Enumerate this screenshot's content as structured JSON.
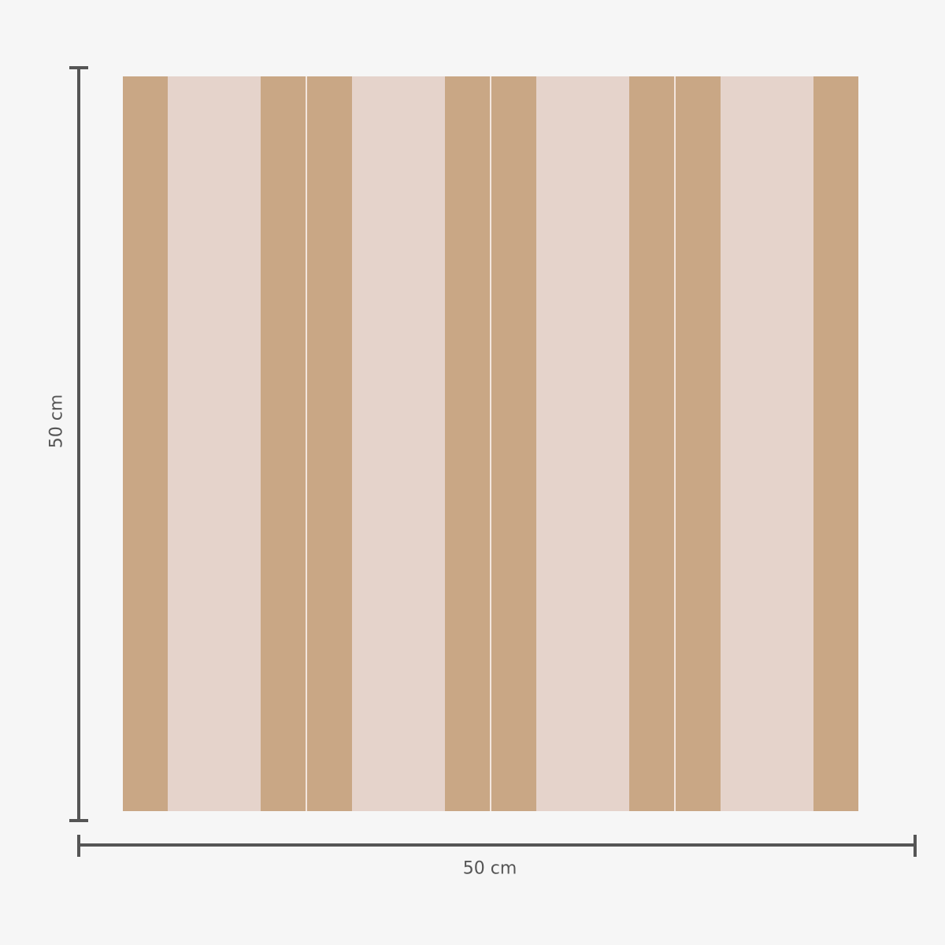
{
  "colors": {
    "background": "#f6f6f6",
    "tan": "#c9a785",
    "pink": "#e5d3cb",
    "separator": "#f3e6de",
    "dimension_line": "#555555"
  },
  "pattern": {
    "stripes": [
      "tan",
      "pink",
      "tan",
      "tan",
      "pink",
      "tan",
      "tan",
      "pink",
      "tan",
      "tan",
      "pink",
      "tan"
    ]
  },
  "dimensions": {
    "height_label": "50 cm",
    "width_label": "50 cm"
  }
}
